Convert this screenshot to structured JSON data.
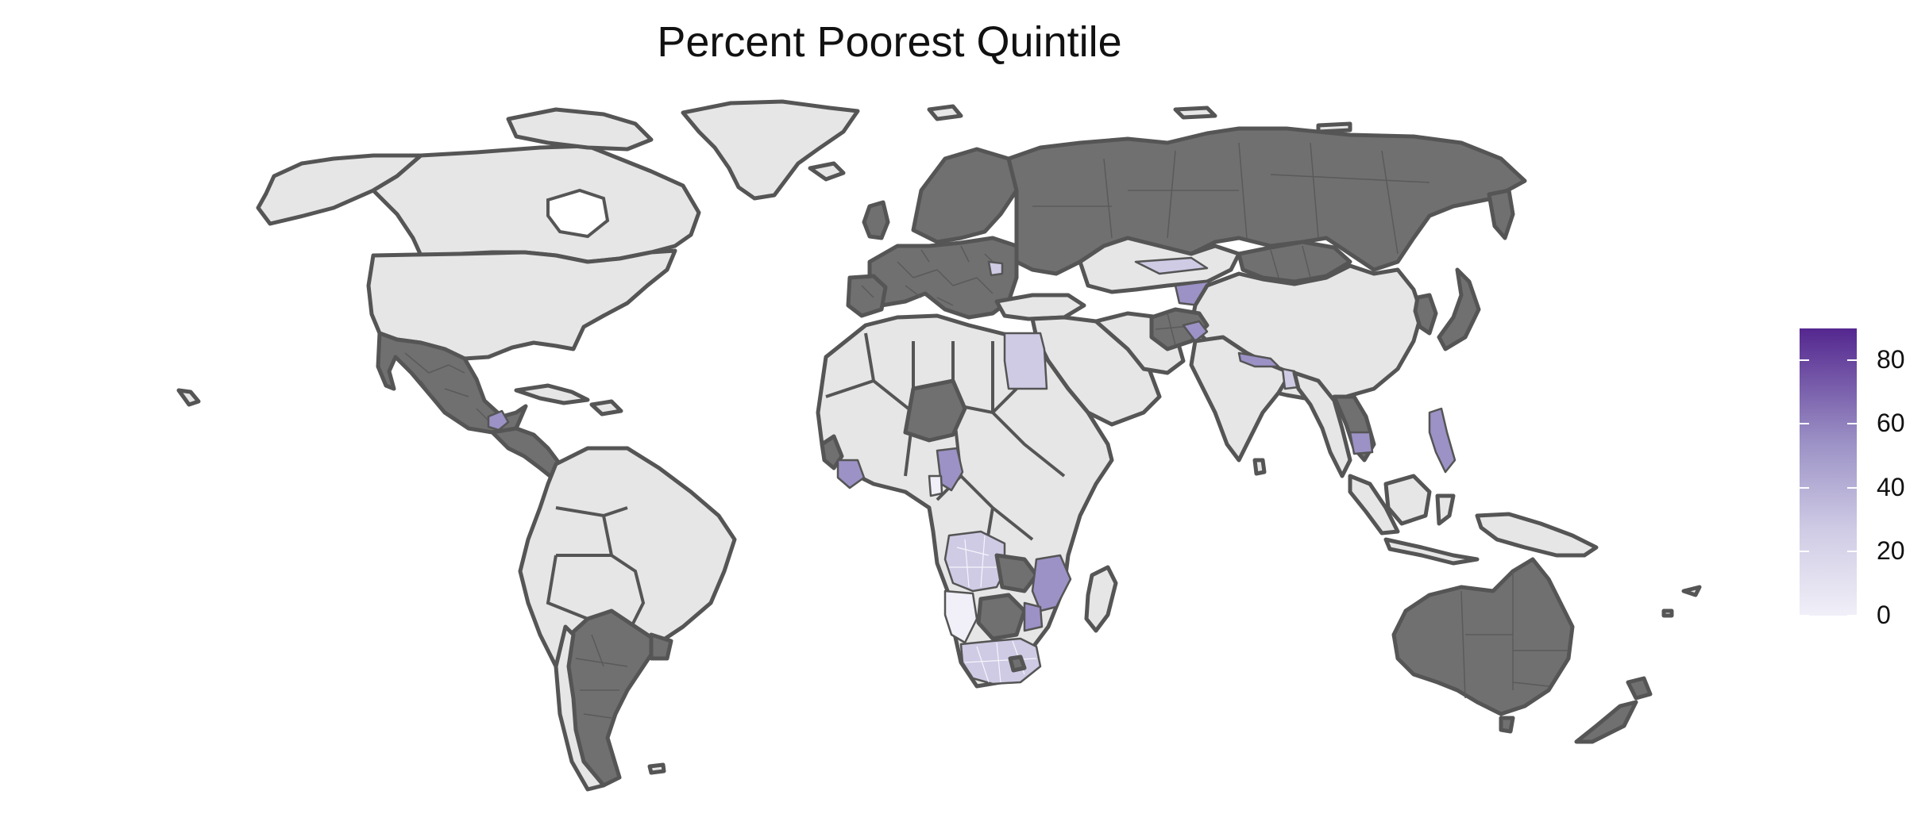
{
  "title": "Percent Poorest Quintile",
  "legend": {
    "ticks": [
      "0",
      "20",
      "40",
      "60",
      "80"
    ],
    "min": 0,
    "max": 90,
    "colors": {
      "low": "#f1eff8",
      "high": "#54278f"
    }
  },
  "map": {
    "nodata_color": "#e6e6e6",
    "excluded_color": "#707070",
    "border_color": "#555555"
  }
}
